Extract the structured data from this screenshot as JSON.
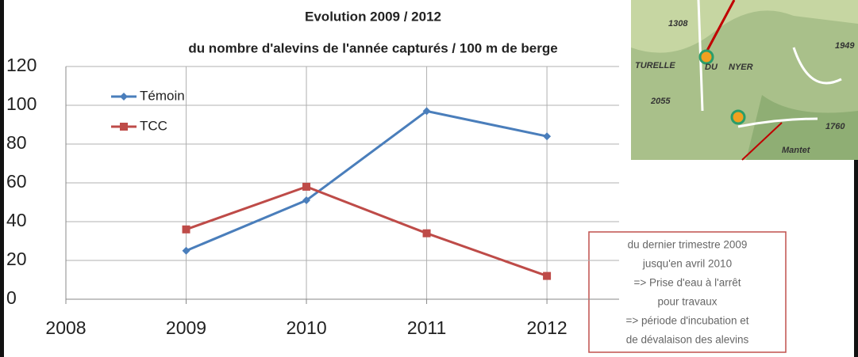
{
  "chart_data": {
    "type": "line",
    "title": "Evolution 2009 / 2012",
    "subtitle": "du nombre d'alevins de l'année capturés / 100 m de berge",
    "x": [
      2009,
      2010,
      2011,
      2012
    ],
    "series": [
      {
        "name": "Témoin",
        "color": "#4a7ebb",
        "marker": "diamond",
        "values": [
          25,
          51,
          97,
          84
        ]
      },
      {
        "name": "TCC",
        "color": "#be4b48",
        "marker": "square",
        "values": [
          36,
          58,
          34,
          12
        ]
      }
    ],
    "xlim": [
      2008,
      2012.6
    ],
    "xticks": [
      2008,
      2009,
      2010,
      2011,
      2012
    ],
    "ylim": [
      0,
      120
    ],
    "yticks": [
      0,
      20,
      40,
      60,
      80,
      100,
      120
    ],
    "grid": true,
    "legend": "upper left",
    "annotation": [
      "du dernier trimestre 2009",
      "jusqu'en avril 2010",
      "=> Prise d'eau à l'arrêt",
      "pour travaux",
      "=> période d'incubation et",
      "de dévalaison des alevins"
    ],
    "map_labels": [
      "1308",
      "1949",
      "TURELLE",
      "DU",
      "NYER",
      "2055",
      "1760",
      "Mantet"
    ]
  }
}
